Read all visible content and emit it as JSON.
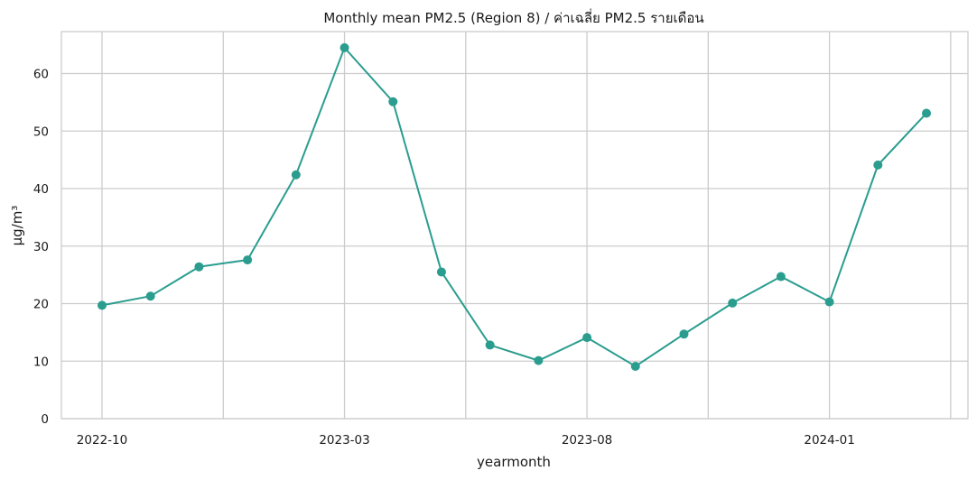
{
  "chart_data": {
    "type": "line",
    "title": "Monthly mean PM2.5 (Region 8) / ค่าเฉลี่ย PM2.5 รายเดือน",
    "xlabel": "yearmonth",
    "ylabel": "µg/m³",
    "x": [
      "2022-10",
      "2022-11",
      "2022-12",
      "2023-01",
      "2023-02",
      "2023-03",
      "2023-04",
      "2023-05",
      "2023-06",
      "2023-07",
      "2023-08",
      "2023-09",
      "2023-10",
      "2023-11",
      "2023-12",
      "2024-01",
      "2024-02",
      "2024-03"
    ],
    "x_ticks": [
      "2022-10",
      "2023-03",
      "2023-08",
      "2024-01"
    ],
    "y_ticks": [
      0,
      10,
      20,
      30,
      40,
      50,
      60
    ],
    "ylim": [
      0,
      67.3
    ],
    "grid": true,
    "color": "#2a9d8f",
    "series": [
      {
        "values": [
          19.7,
          21.3,
          26.4,
          27.6,
          42.4,
          64.5,
          55.1,
          25.5,
          12.8,
          10.1,
          14.1,
          9.1,
          14.7,
          20.1,
          24.7,
          20.3,
          44.1,
          53.1
        ]
      }
    ]
  }
}
